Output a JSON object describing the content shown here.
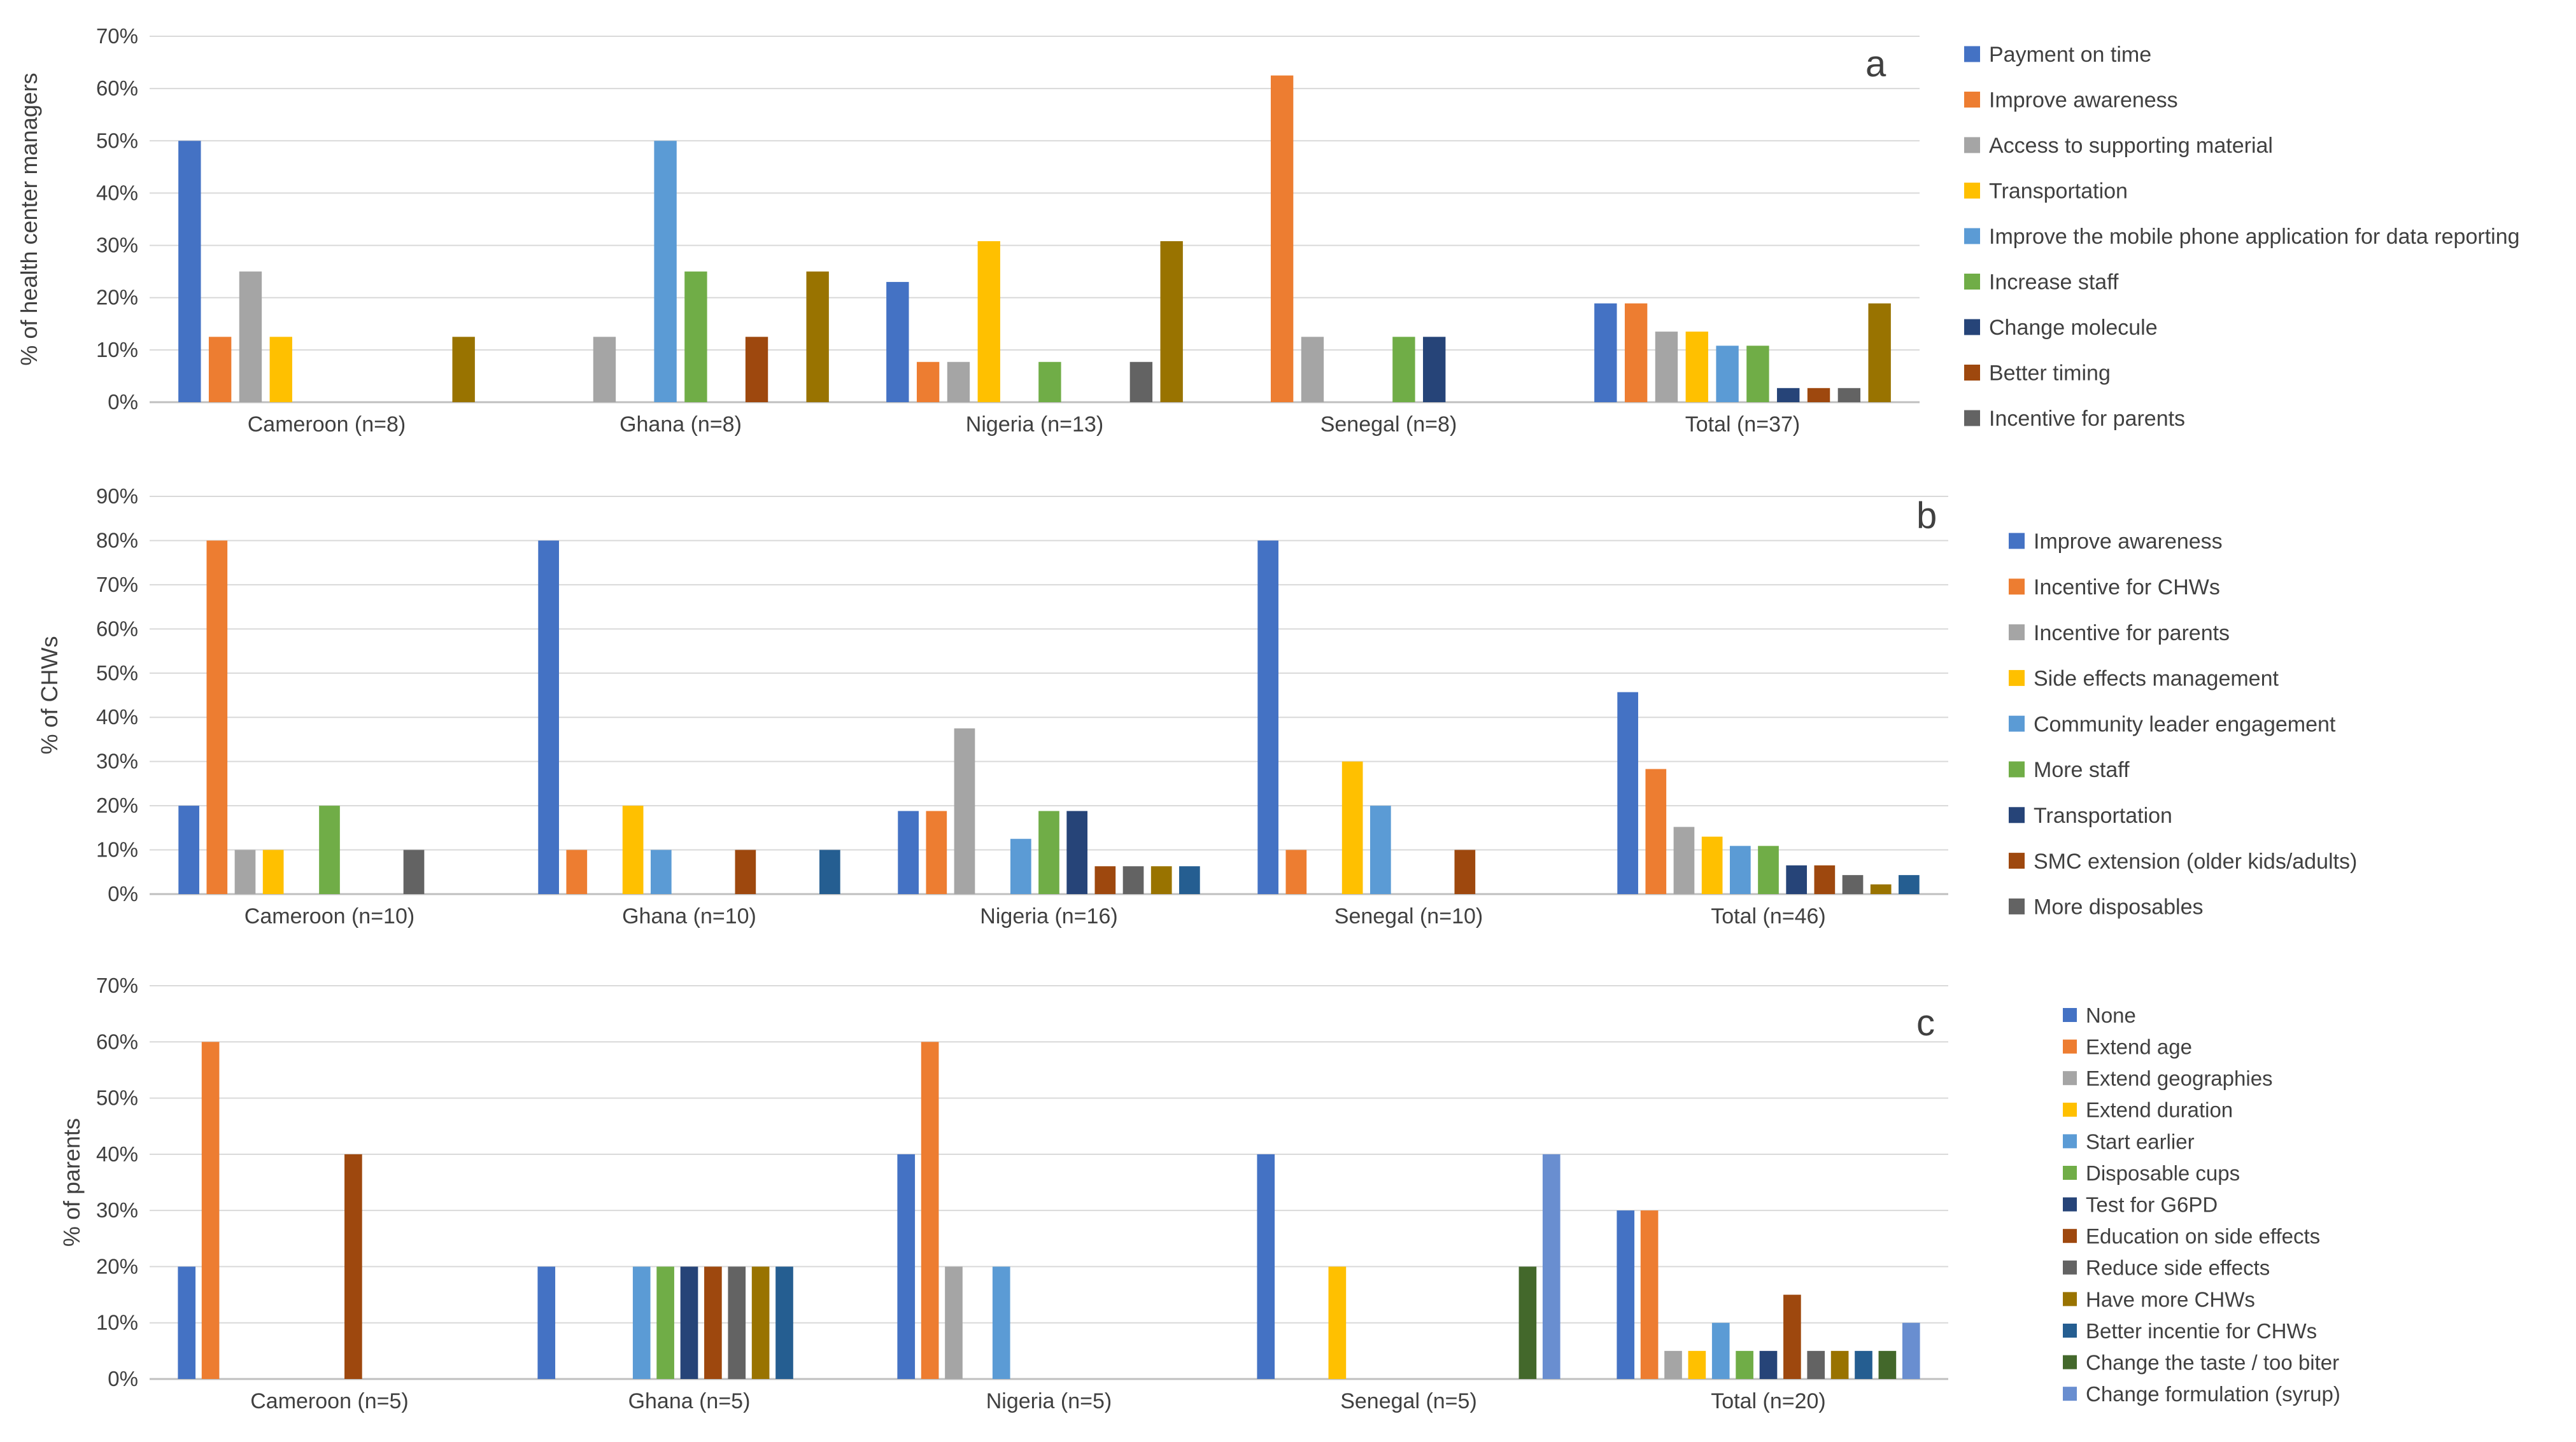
{
  "chart_data": [
    {
      "type": "bar",
      "panel_label": "a",
      "ylabel": "% of health center managers",
      "ylim": [
        0,
        70
      ],
      "yticks": [
        0,
        10,
        20,
        30,
        40,
        50,
        60,
        70
      ],
      "ytick_labels": [
        "0%",
        "10%",
        "20%",
        "30%",
        "40%",
        "50%",
        "60%",
        "70%"
      ],
      "grid": true,
      "legend_position": "right",
      "categories": [
        "Cameroon (n=8)",
        "Ghana (n=8)",
        "Nigeria (n=13)",
        "Senegal (n=8)",
        "Total (n=37)"
      ],
      "series": [
        {
          "name": "Payment on time",
          "color": "#4472C4",
          "values": [
            50,
            0,
            23,
            0,
            18.9
          ]
        },
        {
          "name": "Improve awareness",
          "color": "#ED7D31",
          "values": [
            12.5,
            0,
            7.7,
            62.5,
            18.9
          ]
        },
        {
          "name": "Access to supporting material",
          "color": "#A5A5A5",
          "values": [
            25,
            12.5,
            7.7,
            12.5,
            13.5
          ]
        },
        {
          "name": "Transportation",
          "color": "#FFC000",
          "values": [
            12.5,
            0,
            30.8,
            0,
            13.5
          ]
        },
        {
          "name": "Improve the mobile phone application for data reporting",
          "color": "#5B9BD5",
          "values": [
            0,
            50,
            0,
            0,
            10.8
          ]
        },
        {
          "name": "Increase staff",
          "color": "#70AD47",
          "values": [
            0,
            25,
            7.7,
            12.5,
            10.8
          ]
        },
        {
          "name": "Change molecule",
          "color": "#264478",
          "values": [
            0,
            0,
            0,
            12.5,
            2.7
          ]
        },
        {
          "name": "Better timing",
          "color": "#9E480E",
          "values": [
            0,
            12.5,
            0,
            0,
            2.7
          ]
        },
        {
          "name": "Incentive for parents",
          "color": "#636363",
          "values": [
            0,
            0,
            7.7,
            0,
            2.7
          ]
        },
        {
          "name": "",
          "color": "#997300",
          "values": [
            12.5,
            25,
            30.8,
            0,
            18.9
          ]
        }
      ]
    },
    {
      "type": "bar",
      "panel_label": "b",
      "ylabel": "% of CHWs",
      "ylim": [
        0,
        90
      ],
      "yticks": [
        0,
        10,
        20,
        30,
        40,
        50,
        60,
        70,
        80,
        90
      ],
      "ytick_labels": [
        "0%",
        "10%",
        "20%",
        "30%",
        "40%",
        "50%",
        "60%",
        "70%",
        "80%",
        "90%"
      ],
      "grid": true,
      "legend_position": "right",
      "categories": [
        "Cameroon (n=10)",
        "Ghana (n=10)",
        "Nigeria (n=16)",
        "Senegal (n=10)",
        "Total (n=46)"
      ],
      "series": [
        {
          "name": "Improve awareness",
          "color": "#4472C4",
          "values": [
            20,
            80,
            18.8,
            80,
            45.7
          ]
        },
        {
          "name": "Incentive for CHWs",
          "color": "#ED7D31",
          "values": [
            80,
            10,
            18.8,
            10,
            28.3
          ]
        },
        {
          "name": "Incentive for parents",
          "color": "#A5A5A5",
          "values": [
            10,
            0,
            37.5,
            0,
            15.2
          ]
        },
        {
          "name": "Side effects management",
          "color": "#FFC000",
          "values": [
            10,
            20,
            0,
            30,
            13
          ]
        },
        {
          "name": "Community leader engagement",
          "color": "#5B9BD5",
          "values": [
            0,
            10,
            12.5,
            20,
            10.9
          ]
        },
        {
          "name": "More staff",
          "color": "#70AD47",
          "values": [
            20,
            0,
            18.8,
            0,
            10.9
          ]
        },
        {
          "name": "Transportation",
          "color": "#264478",
          "values": [
            0,
            0,
            18.8,
            0,
            6.5
          ]
        },
        {
          "name": "SMC extension (older kids/adults)",
          "color": "#9E480E",
          "values": [
            0,
            10,
            6.3,
            10,
            6.5
          ]
        },
        {
          "name": "More disposables",
          "color": "#636363",
          "values": [
            10,
            0,
            6.3,
            0,
            4.3
          ]
        },
        {
          "name": "",
          "color": "#997300",
          "values": [
            0,
            0,
            6.3,
            0,
            2.2
          ]
        },
        {
          "name": "",
          "color": "#255E91",
          "values": [
            0,
            10,
            6.3,
            0,
            4.3
          ]
        }
      ]
    },
    {
      "type": "bar",
      "panel_label": "c",
      "ylabel": "% of parents",
      "ylim": [
        0,
        70
      ],
      "yticks": [
        0,
        10,
        20,
        30,
        40,
        50,
        60,
        70
      ],
      "ytick_labels": [
        "0%",
        "10%",
        "20%",
        "30%",
        "40%",
        "50%",
        "60%",
        "70%"
      ],
      "grid": true,
      "legend_position": "right",
      "categories": [
        "Cameroon (n=5)",
        "Ghana (n=5)",
        "Nigeria (n=5)",
        "Senegal (n=5)",
        "Total (n=20)"
      ],
      "series": [
        {
          "name": "None",
          "color": "#4472C4",
          "values": [
            20,
            20,
            40,
            40,
            30
          ]
        },
        {
          "name": "Extend age",
          "color": "#ED7D31",
          "values": [
            60,
            0,
            60,
            0,
            30
          ]
        },
        {
          "name": "Extend geographies",
          "color": "#A5A5A5",
          "values": [
            0,
            0,
            20,
            0,
            5
          ]
        },
        {
          "name": "Extend duration",
          "color": "#FFC000",
          "values": [
            0,
            0,
            0,
            20,
            5
          ]
        },
        {
          "name": "Start earlier",
          "color": "#5B9BD5",
          "values": [
            0,
            20,
            20,
            0,
            10
          ]
        },
        {
          "name": "Disposable cups",
          "color": "#70AD47",
          "values": [
            0,
            20,
            0,
            0,
            5
          ]
        },
        {
          "name": "Test for G6PD",
          "color": "#264478",
          "values": [
            0,
            20,
            0,
            0,
            5
          ]
        },
        {
          "name": "Education on side effects",
          "color": "#9E480E",
          "values": [
            40,
            20,
            0,
            0,
            15
          ]
        },
        {
          "name": "Reduce side effects",
          "color": "#636363",
          "values": [
            0,
            20,
            0,
            0,
            5
          ]
        },
        {
          "name": "Have more CHWs",
          "color": "#997300",
          "values": [
            0,
            20,
            0,
            0,
            5
          ]
        },
        {
          "name": "Better incentie for CHWs",
          "color": "#255E91",
          "values": [
            0,
            20,
            0,
            0,
            5
          ]
        },
        {
          "name": "Change the taste / too biter",
          "color": "#43682B",
          "values": [
            0,
            0,
            0,
            20,
            5
          ]
        },
        {
          "name": "Change formulation (syrup)",
          "color": "#698ED0",
          "values": [
            0,
            0,
            0,
            40,
            10
          ]
        }
      ]
    }
  ]
}
